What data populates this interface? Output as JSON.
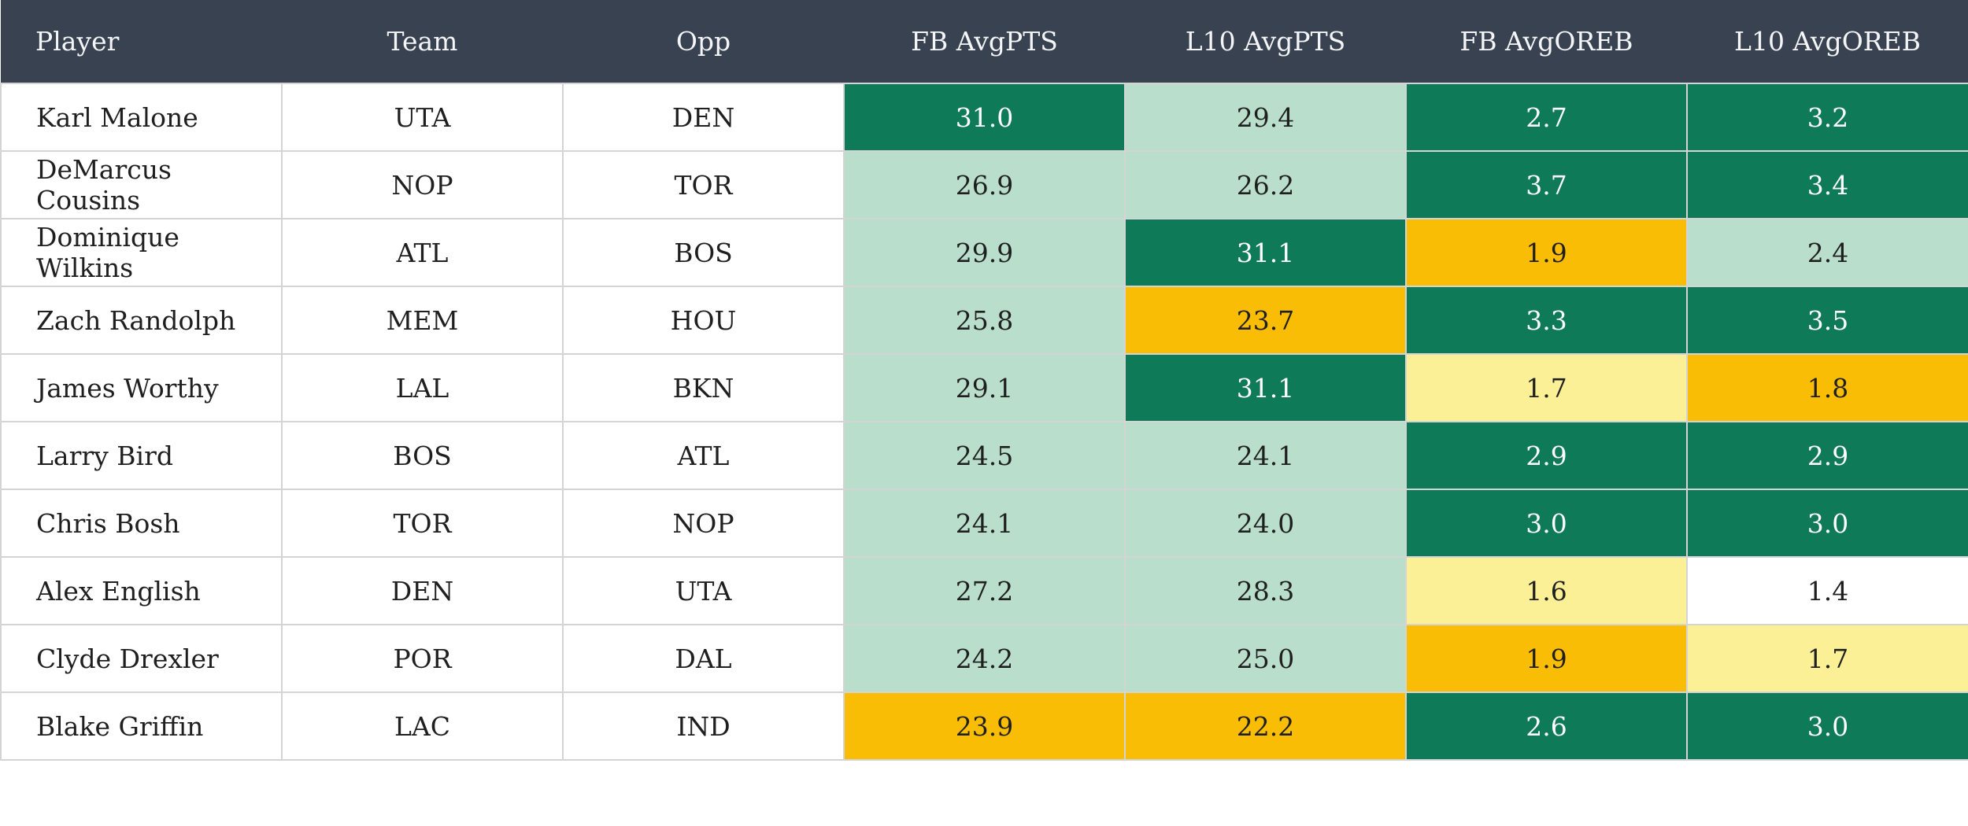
{
  "chart_data": {
    "type": "table",
    "columns": [
      {
        "id": "player",
        "label": "Player",
        "align": "left"
      },
      {
        "id": "team",
        "label": "Team",
        "align": "center"
      },
      {
        "id": "opp",
        "label": "Opp",
        "align": "center"
      },
      {
        "id": "fb_avgpts",
        "label": "FB AvgPTS",
        "align": "center"
      },
      {
        "id": "l10_avgpts",
        "label": "L10 AvgPTS",
        "align": "center"
      },
      {
        "id": "fb_avgoreb",
        "label": "FB AvgOREB",
        "align": "center"
      },
      {
        "id": "l10_avgoreb",
        "label": "L10 AvgOREB",
        "align": "center"
      }
    ],
    "rows": [
      {
        "player": "Karl Malone",
        "team": "UTA",
        "opp": "DEN",
        "stats": [
          {
            "value": "31.0",
            "tone": "strong-green"
          },
          {
            "value": "29.4",
            "tone": "light-green"
          },
          {
            "value": "2.7",
            "tone": "strong-green"
          },
          {
            "value": "3.2",
            "tone": "strong-green"
          }
        ]
      },
      {
        "player": "DeMarcus Cousins",
        "team": "NOP",
        "opp": "TOR",
        "stats": [
          {
            "value": "26.9",
            "tone": "light-green"
          },
          {
            "value": "26.2",
            "tone": "light-green"
          },
          {
            "value": "3.7",
            "tone": "strong-green"
          },
          {
            "value": "3.4",
            "tone": "strong-green"
          }
        ]
      },
      {
        "player": "Dominique Wilkins",
        "team": "ATL",
        "opp": "BOS",
        "stats": [
          {
            "value": "29.9",
            "tone": "light-green"
          },
          {
            "value": "31.1",
            "tone": "strong-green"
          },
          {
            "value": "1.9",
            "tone": "amber"
          },
          {
            "value": "2.4",
            "tone": "light-green"
          }
        ]
      },
      {
        "player": "Zach Randolph",
        "team": "MEM",
        "opp": "HOU",
        "stats": [
          {
            "value": "25.8",
            "tone": "light-green"
          },
          {
            "value": "23.7",
            "tone": "amber"
          },
          {
            "value": "3.3",
            "tone": "strong-green"
          },
          {
            "value": "3.5",
            "tone": "strong-green"
          }
        ]
      },
      {
        "player": "James Worthy",
        "team": "LAL",
        "opp": "BKN",
        "stats": [
          {
            "value": "29.1",
            "tone": "light-green"
          },
          {
            "value": "31.1",
            "tone": "strong-green"
          },
          {
            "value": "1.7",
            "tone": "light-yellow"
          },
          {
            "value": "1.8",
            "tone": "amber"
          }
        ]
      },
      {
        "player": "Larry Bird",
        "team": "BOS",
        "opp": "ATL",
        "stats": [
          {
            "value": "24.5",
            "tone": "light-green"
          },
          {
            "value": "24.1",
            "tone": "light-green"
          },
          {
            "value": "2.9",
            "tone": "strong-green"
          },
          {
            "value": "2.9",
            "tone": "strong-green"
          }
        ]
      },
      {
        "player": "Chris Bosh",
        "team": "TOR",
        "opp": "NOP",
        "stats": [
          {
            "value": "24.1",
            "tone": "light-green"
          },
          {
            "value": "24.0",
            "tone": "light-green"
          },
          {
            "value": "3.0",
            "tone": "strong-green"
          },
          {
            "value": "3.0",
            "tone": "strong-green"
          }
        ]
      },
      {
        "player": "Alex English",
        "team": "DEN",
        "opp": "UTA",
        "stats": [
          {
            "value": "27.2",
            "tone": "light-green"
          },
          {
            "value": "28.3",
            "tone": "light-green"
          },
          {
            "value": "1.6",
            "tone": "light-yellow"
          },
          {
            "value": "1.4",
            "tone": "none"
          }
        ]
      },
      {
        "player": "Clyde Drexler",
        "team": "POR",
        "opp": "DAL",
        "stats": [
          {
            "value": "24.2",
            "tone": "light-green"
          },
          {
            "value": "25.0",
            "tone": "light-green"
          },
          {
            "value": "1.9",
            "tone": "amber"
          },
          {
            "value": "1.7",
            "tone": "light-yellow"
          }
        ]
      },
      {
        "player": "Blake Griffin",
        "team": "LAC",
        "opp": "IND",
        "stats": [
          {
            "value": "23.9",
            "tone": "amber"
          },
          {
            "value": "22.2",
            "tone": "amber"
          },
          {
            "value": "2.6",
            "tone": "strong-green"
          },
          {
            "value": "3.0",
            "tone": "strong-green"
          }
        ]
      }
    ]
  },
  "colors": {
    "header_bg": "#394251",
    "header_text": "#F4F5F7",
    "strong_green": "#0F7A57",
    "light_green": "#B9DFCC",
    "amber": "#FABD05",
    "light_yellow": "#FBF096",
    "cell_text": "#1F1F1F",
    "text_on_green": "#FFFFFF",
    "border": "#D4D4D4",
    "page_bg": "#FFFFFF"
  }
}
